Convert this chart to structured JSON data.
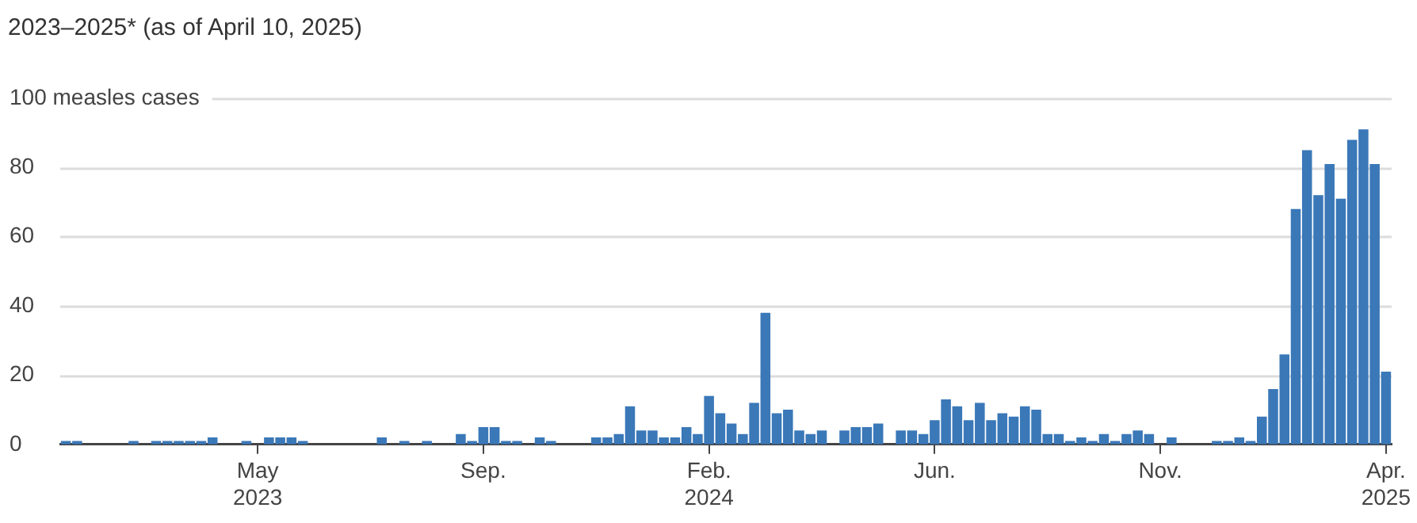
{
  "chart_data": {
    "type": "bar",
    "title": "2023–2025* (as of April 10, 2025)",
    "categories": [
      null,
      null,
      null,
      null,
      null,
      null,
      null,
      null,
      null,
      null,
      null,
      null,
      null,
      null,
      null,
      null,
      null,
      "May\n2023",
      null,
      null,
      null,
      null,
      null,
      null,
      null,
      null,
      null,
      null,
      null,
      null,
      null,
      null,
      null,
      null,
      null,
      null,
      null,
      "Sep.",
      null,
      null,
      null,
      null,
      null,
      null,
      null,
      null,
      null,
      null,
      null,
      null,
      null,
      null,
      null,
      null,
      null,
      null,
      null,
      "Feb.\n2024",
      null,
      null,
      null,
      null,
      null,
      null,
      null,
      null,
      null,
      null,
      null,
      null,
      null,
      null,
      null,
      null,
      null,
      null,
      null,
      "Jun.",
      null,
      null,
      null,
      null,
      null,
      null,
      null,
      null,
      null,
      null,
      null,
      null,
      null,
      null,
      null,
      null,
      null,
      null,
      null,
      "Nov.",
      null,
      null,
      null,
      null,
      null,
      null,
      null,
      null,
      null,
      null,
      null,
      null,
      null,
      null,
      null,
      null,
      null,
      null,
      null,
      "Apr.\n2025"
    ],
    "values": [
      1,
      1,
      0,
      0,
      0,
      0,
      1,
      0,
      1,
      1,
      1,
      1,
      1,
      2,
      0,
      0,
      1,
      0,
      2,
      2,
      2,
      1,
      0,
      0,
      0,
      0,
      0,
      0,
      2,
      0,
      1,
      0,
      1,
      0,
      0,
      3,
      1,
      5,
      5,
      1,
      1,
      0,
      2,
      1,
      0,
      0,
      0,
      2,
      2,
      3,
      11,
      4,
      4,
      2,
      2,
      5,
      3,
      14,
      9,
      6,
      3,
      12,
      38,
      9,
      10,
      4,
      3,
      4,
      0,
      4,
      5,
      5,
      6,
      0,
      4,
      4,
      3,
      7,
      13,
      11,
      7,
      12,
      7,
      9,
      8,
      11,
      10,
      3,
      3,
      1,
      2,
      1,
      3,
      1,
      3,
      4,
      3,
      0,
      2,
      0,
      0,
      0,
      1,
      1,
      2,
      1,
      8,
      16,
      26,
      68,
      85,
      72,
      81,
      71,
      88,
      91,
      81,
      21
    ],
    "color": "#3a78b8",
    "ylim": [
      0,
      100
    ],
    "yticks": [
      0,
      20,
      40,
      60,
      80,
      {
        "value": 100,
        "label": "100 measles cases"
      }
    ],
    "grid": "y"
  }
}
